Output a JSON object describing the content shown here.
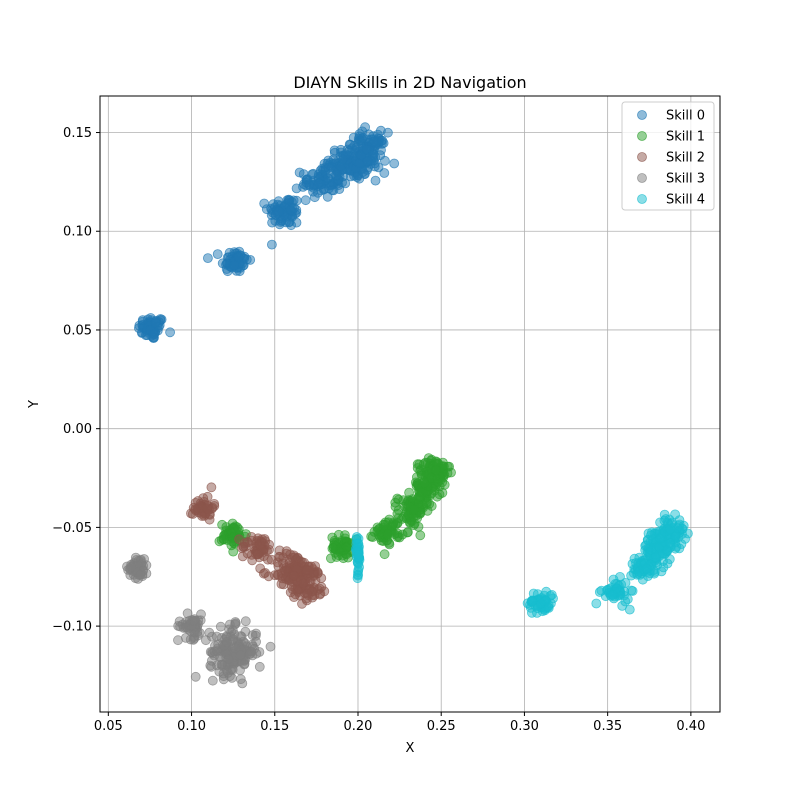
{
  "chart_data": {
    "type": "scatter",
    "title": "DIAYN Skills in 2D Navigation",
    "xlabel": "X",
    "ylabel": "Y",
    "xlim": [
      0.045,
      0.4175
    ],
    "ylim": [
      -0.1435,
      0.1685
    ],
    "xticks": [
      "0.05",
      "0.10",
      "0.15",
      "0.20",
      "0.25",
      "0.30",
      "0.35",
      "0.40"
    ],
    "xtick_values": [
      0.05,
      0.1,
      0.15,
      0.2,
      0.25,
      0.3,
      0.35,
      0.4
    ],
    "yticks": [
      "−0.10",
      "−0.05",
      "0.00",
      "0.05",
      "0.10",
      "0.15"
    ],
    "ytick_values": [
      -0.1,
      -0.05,
      0.0,
      0.05,
      0.1,
      0.15
    ],
    "grid": true,
    "legend_position": "top-right",
    "marker_alpha": 0.5,
    "series": [
      {
        "name": "Skill 0",
        "color": "#1f77b4",
        "clusters": [
          {
            "cx": 0.076,
            "cy": 0.051,
            "sx": 0.004,
            "sy": 0.003,
            "n": 60
          },
          {
            "cx": 0.126,
            "cy": 0.085,
            "sx": 0.004,
            "sy": 0.003,
            "n": 60
          },
          {
            "cx": 0.156,
            "cy": 0.11,
            "sx": 0.005,
            "sy": 0.004,
            "n": 70
          },
          {
            "cx": 0.178,
            "cy": 0.125,
            "sx": 0.006,
            "sy": 0.004,
            "n": 80
          },
          {
            "cx": 0.195,
            "cy": 0.134,
            "sx": 0.006,
            "sy": 0.004,
            "n": 90
          },
          {
            "cx": 0.205,
            "cy": 0.14,
            "sx": 0.006,
            "sy": 0.005,
            "n": 120
          }
        ]
      },
      {
        "name": "Skill 1",
        "color": "#2ca02c",
        "clusters": [
          {
            "cx": 0.125,
            "cy": -0.054,
            "sx": 0.004,
            "sy": 0.003,
            "n": 50
          },
          {
            "cx": 0.19,
            "cy": -0.06,
            "sx": 0.003,
            "sy": 0.003,
            "n": 50
          },
          {
            "cx": 0.218,
            "cy": -0.052,
            "sx": 0.004,
            "sy": 0.003,
            "n": 60
          },
          {
            "cx": 0.232,
            "cy": -0.042,
            "sx": 0.004,
            "sy": 0.004,
            "n": 70
          },
          {
            "cx": 0.24,
            "cy": -0.03,
            "sx": 0.004,
            "sy": 0.005,
            "n": 80
          },
          {
            "cx": 0.247,
            "cy": -0.022,
            "sx": 0.004,
            "sy": 0.004,
            "n": 70
          }
        ]
      },
      {
        "name": "Skill 2",
        "color": "#8c564b",
        "clusters": [
          {
            "cx": 0.107,
            "cy": -0.04,
            "sx": 0.003,
            "sy": 0.003,
            "n": 45
          },
          {
            "cx": 0.14,
            "cy": -0.06,
            "sx": 0.005,
            "sy": 0.003,
            "n": 50
          },
          {
            "cx": 0.16,
            "cy": -0.072,
            "sx": 0.006,
            "sy": 0.005,
            "n": 90
          },
          {
            "cx": 0.17,
            "cy": -0.078,
            "sx": 0.006,
            "sy": 0.005,
            "n": 80
          }
        ]
      },
      {
        "name": "Skill 3",
        "color": "#7f7f7f",
        "clusters": [
          {
            "cx": 0.068,
            "cy": -0.07,
            "sx": 0.003,
            "sy": 0.003,
            "n": 45
          },
          {
            "cx": 0.1,
            "cy": -0.1,
            "sx": 0.004,
            "sy": 0.003,
            "n": 50
          },
          {
            "cx": 0.125,
            "cy": -0.113,
            "sx": 0.007,
            "sy": 0.006,
            "n": 160
          }
        ]
      },
      {
        "name": "Skill 4",
        "color": "#17becf",
        "clusters": [
          {
            "cx": 0.2,
            "cy": -0.064,
            "sx": 0.0006,
            "sy": 0.005,
            "n": 35
          },
          {
            "cx": 0.31,
            "cy": -0.088,
            "sx": 0.004,
            "sy": 0.003,
            "n": 50
          },
          {
            "cx": 0.355,
            "cy": -0.083,
            "sx": 0.004,
            "sy": 0.003,
            "n": 45
          },
          {
            "cx": 0.372,
            "cy": -0.07,
            "sx": 0.004,
            "sy": 0.003,
            "n": 55
          },
          {
            "cx": 0.38,
            "cy": -0.06,
            "sx": 0.004,
            "sy": 0.005,
            "n": 80
          },
          {
            "cx": 0.388,
            "cy": -0.053,
            "sx": 0.004,
            "sy": 0.004,
            "n": 70
          }
        ]
      }
    ]
  }
}
